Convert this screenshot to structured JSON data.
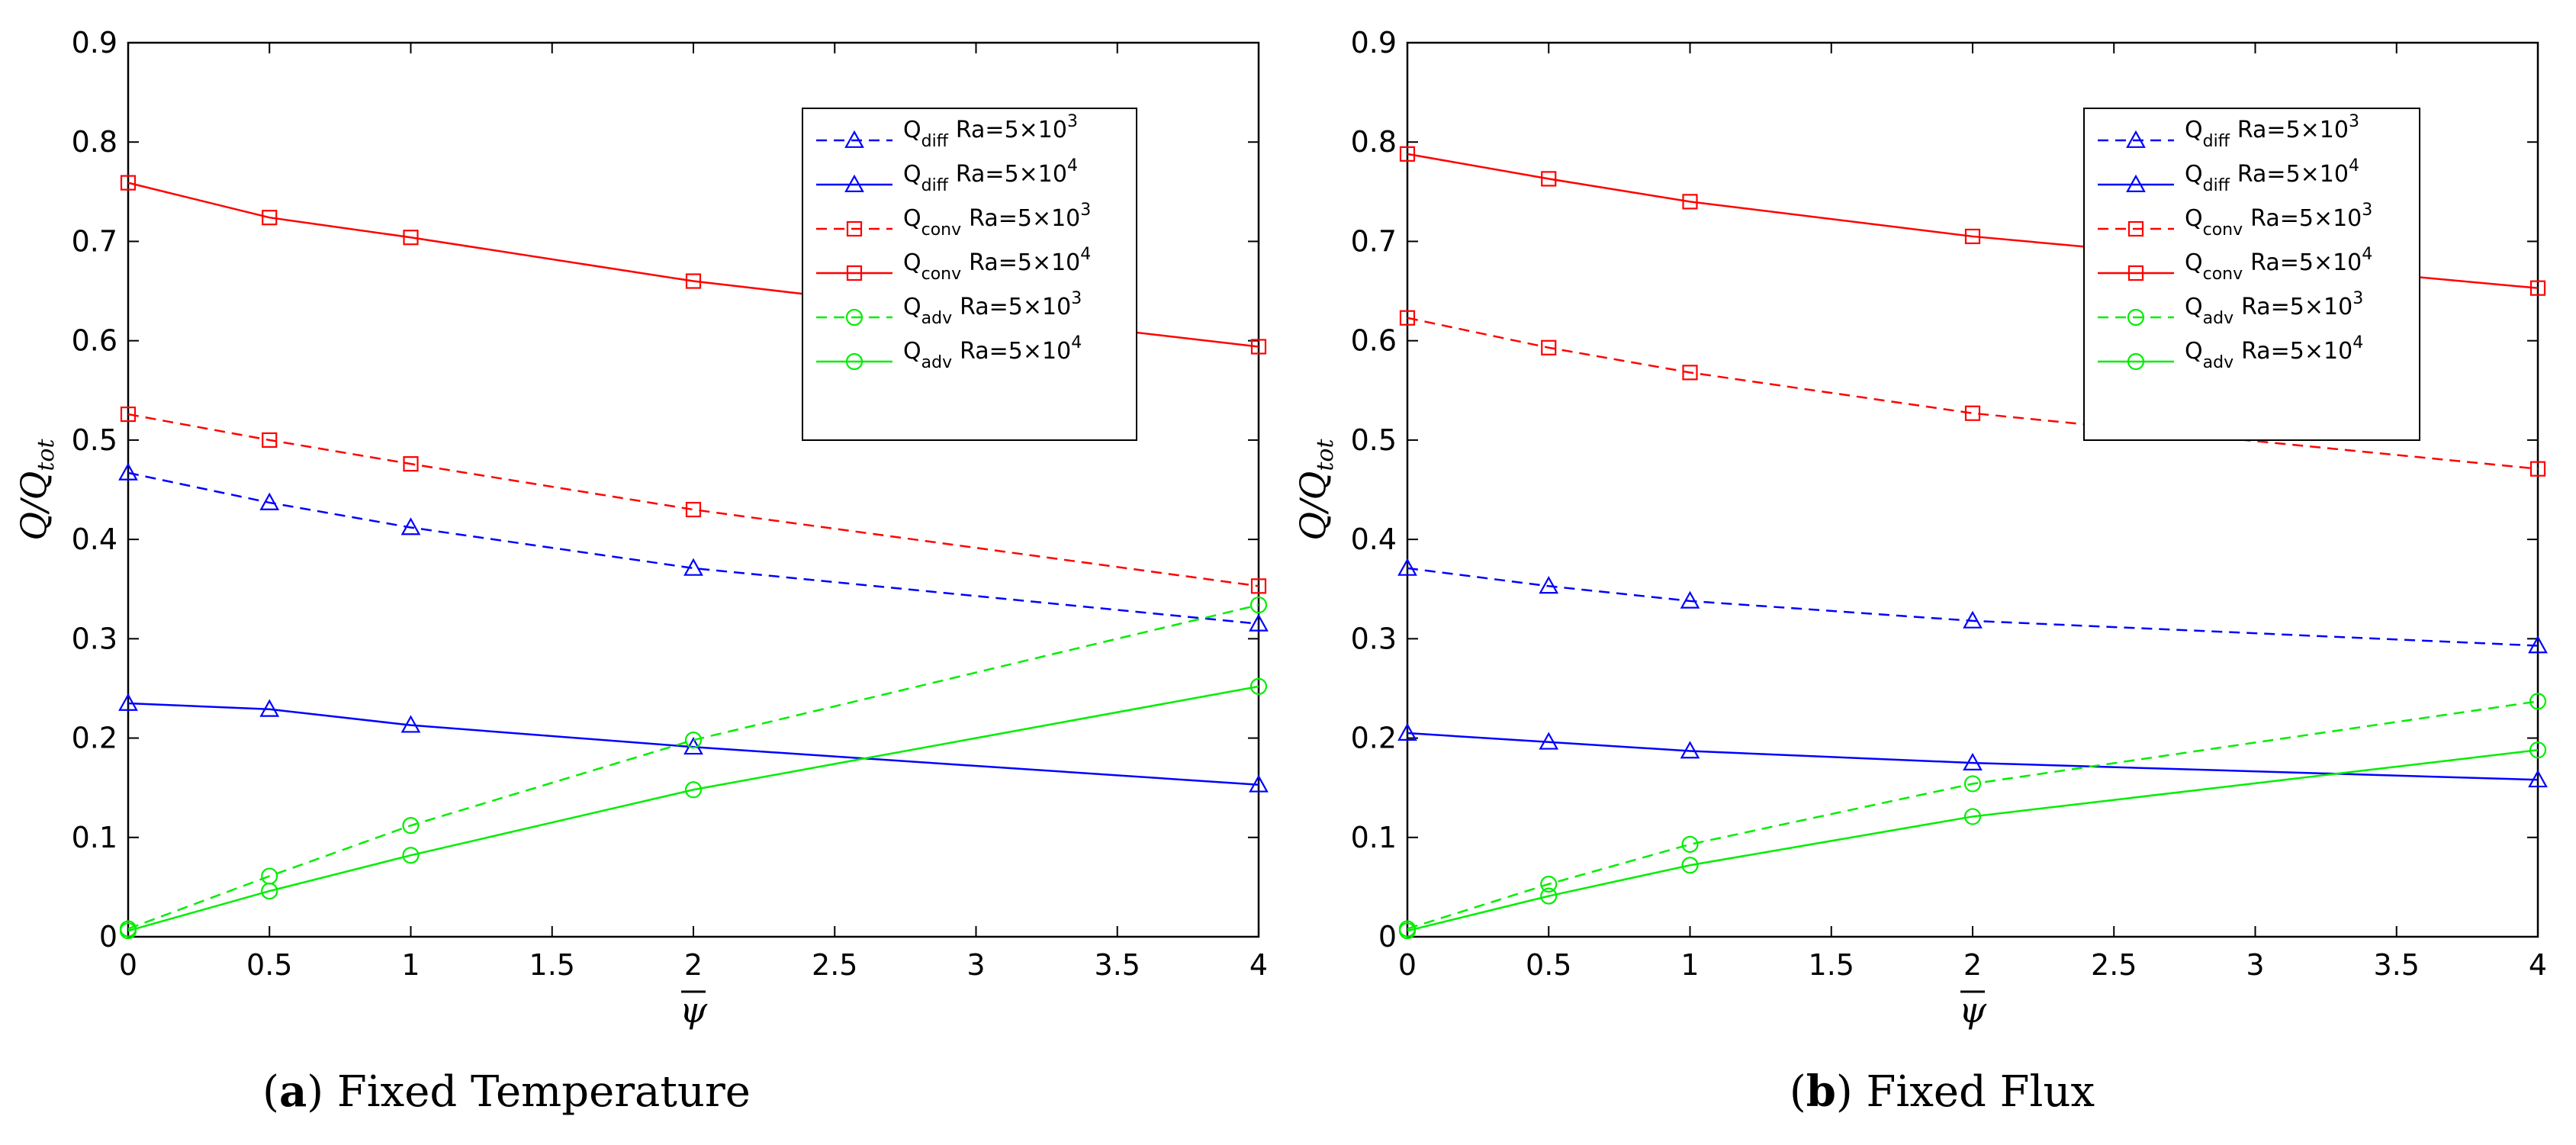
{
  "chart_data": [
    {
      "type": "line",
      "panel_label": "a",
      "title": "Fixed Temperature",
      "xlabel": "ψ",
      "ylabel": "Q / Q_tot",
      "ylabel_main": "Q",
      "ylabel_slash": "/",
      "ylabel_denom": "Q",
      "ylabel_sub": "tot",
      "xlim": [
        0,
        4
      ],
      "ylim": [
        0,
        0.9
      ],
      "x_ticks": [
        "0",
        "0.5",
        "1",
        "1.5",
        "2",
        "2.5",
        "3",
        "3.5",
        "4"
      ],
      "y_ticks": [
        "0",
        "0.1",
        "0.2",
        "0.3",
        "0.4",
        "0.5",
        "0.6",
        "0.7",
        "0.8",
        "0.9"
      ],
      "x": [
        0,
        0.5,
        1,
        2,
        4
      ],
      "legend_position": "top-right",
      "series": [
        {
          "name": "Q_diff Ra=5×10^3",
          "q": "Q",
          "sub": "diff",
          "ra": "Ra=5×10",
          "exp": "3",
          "color": "#0000ff",
          "dash": true,
          "marker": "triangle",
          "values": [
            0.467,
            0.437,
            0.412,
            0.371,
            0.315
          ]
        },
        {
          "name": "Q_diff Ra=5×10^4",
          "q": "Q",
          "sub": "diff",
          "ra": "Ra=5×10",
          "exp": "4",
          "color": "#0000ff",
          "dash": false,
          "marker": "triangle",
          "values": [
            0.235,
            0.229,
            0.213,
            0.191,
            0.153
          ]
        },
        {
          "name": "Q_conv Ra=5×10^3",
          "q": "Q",
          "sub": "conv",
          "ra": "Ra=5×10",
          "exp": "3",
          "color": "#ff0000",
          "dash": true,
          "marker": "square",
          "values": [
            0.526,
            0.5,
            0.476,
            0.43,
            0.353
          ]
        },
        {
          "name": "Q_conv Ra=5×10^4",
          "q": "Q",
          "sub": "conv",
          "ra": "Ra=5×10",
          "exp": "4",
          "color": "#ff0000",
          "dash": false,
          "marker": "square",
          "values": [
            0.759,
            0.724,
            0.704,
            0.66,
            0.594
          ]
        },
        {
          "name": "Q_adv Ra=5×10^3",
          "q": "Q",
          "sub": "adv",
          "ra": "Ra=5×10",
          "exp": "3",
          "color": "#00ee00",
          "dash": true,
          "marker": "circle",
          "values": [
            0.008,
            0.061,
            0.112,
            0.198,
            0.334
          ]
        },
        {
          "name": "Q_adv Ra=5×10^4",
          "q": "Q",
          "sub": "adv",
          "ra": "Ra=5×10",
          "exp": "4",
          "color": "#00ee00",
          "dash": false,
          "marker": "circle",
          "values": [
            0.006,
            0.046,
            0.082,
            0.148,
            0.252
          ]
        }
      ]
    },
    {
      "type": "line",
      "panel_label": "b",
      "title": "Fixed Flux",
      "xlabel": "ψ",
      "ylabel": "Q / Q_tot",
      "ylabel_main": "Q",
      "ylabel_slash": "/",
      "ylabel_denom": "Q",
      "ylabel_sub": "tot",
      "xlim": [
        0,
        4
      ],
      "ylim": [
        0,
        0.9
      ],
      "x_ticks": [
        "0",
        "0.5",
        "1",
        "1.5",
        "2",
        "2.5",
        "3",
        "3.5",
        "4"
      ],
      "y_ticks": [
        "0",
        "0.1",
        "0.2",
        "0.3",
        "0.4",
        "0.5",
        "0.6",
        "0.7",
        "0.8",
        "0.9"
      ],
      "x": [
        0,
        0.5,
        1,
        2,
        4
      ],
      "legend_position": "top-right",
      "series": [
        {
          "name": "Q_diff Ra=5×10^3",
          "q": "Q",
          "sub": "diff",
          "ra": "Ra=5×10",
          "exp": "3",
          "color": "#0000ff",
          "dash": true,
          "marker": "triangle",
          "values": [
            0.371,
            0.353,
            0.338,
            0.318,
            0.293
          ]
        },
        {
          "name": "Q_diff Ra=5×10^4",
          "q": "Q",
          "sub": "diff",
          "ra": "Ra=5×10",
          "exp": "4",
          "color": "#0000ff",
          "dash": false,
          "marker": "triangle",
          "values": [
            0.205,
            0.196,
            0.187,
            0.175,
            0.158
          ]
        },
        {
          "name": "Q_conv Ra=5×10^3",
          "q": "Q",
          "sub": "conv",
          "ra": "Ra=5×10",
          "exp": "3",
          "color": "#ff0000",
          "dash": true,
          "marker": "square",
          "values": [
            0.623,
            0.593,
            0.568,
            0.527,
            0.471
          ]
        },
        {
          "name": "Q_conv Ra=5×10^4",
          "q": "Q",
          "sub": "conv",
          "ra": "Ra=5×10",
          "exp": "4",
          "color": "#ff0000",
          "dash": false,
          "marker": "square",
          "values": [
            0.788,
            0.763,
            0.74,
            0.705,
            0.653
          ]
        },
        {
          "name": "Q_adv Ra=5×10^3",
          "q": "Q",
          "sub": "adv",
          "ra": "Ra=5×10",
          "exp": "3",
          "color": "#00ee00",
          "dash": true,
          "marker": "circle",
          "values": [
            0.008,
            0.053,
            0.093,
            0.154,
            0.237
          ]
        },
        {
          "name": "Q_adv Ra=5×10^4",
          "q": "Q",
          "sub": "adv",
          "ra": "Ra=5×10",
          "exp": "4",
          "color": "#00ee00",
          "dash": false,
          "marker": "circle",
          "values": [
            0.006,
            0.041,
            0.072,
            0.121,
            0.188
          ]
        }
      ]
    }
  ]
}
